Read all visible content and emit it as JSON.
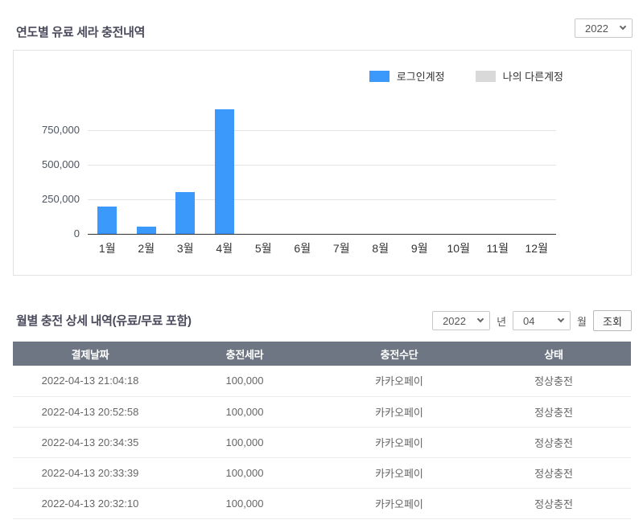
{
  "header": {
    "title": "연도별 유료 세라 충전내역",
    "year_select": {
      "value": "2022"
    }
  },
  "chart_data": {
    "type": "bar",
    "title": "연도별 유료 세라 충전내역",
    "categories": [
      "1월",
      "2월",
      "3월",
      "4월",
      "5월",
      "6월",
      "7월",
      "8월",
      "9월",
      "10월",
      "11월",
      "12월"
    ],
    "series": [
      {
        "name": "로그인계정",
        "color": "#3B99FC",
        "values": [
          200000,
          50000,
          300000,
          900000,
          0,
          0,
          0,
          0,
          0,
          0,
          0,
          0
        ]
      },
      {
        "name": "나의 다른계정",
        "color": "#D9D9D9",
        "values": [
          0,
          0,
          0,
          0,
          0,
          0,
          0,
          0,
          0,
          0,
          0,
          0
        ]
      }
    ],
    "xlabel": "",
    "ylabel": "",
    "yticks": [
      0,
      250000,
      500000,
      750000
    ],
    "ytick_labels": [
      "0",
      "250,000",
      "500,000",
      "750,000"
    ],
    "ylim": [
      0,
      960000
    ],
    "grid": true,
    "legend_position": "top-right"
  },
  "detail": {
    "title": "월별 충전 상세 내역(유료/무료 포함)",
    "controls": {
      "year": {
        "value": "2022"
      },
      "year_label": "년",
      "month": {
        "value": "04"
      },
      "month_label": "월",
      "search_button": "조회"
    }
  },
  "table": {
    "headers": [
      "결제날짜",
      "충전세라",
      "충전수단",
      "상태"
    ],
    "rows": [
      [
        "2022-04-13 21:04:18",
        "100,000",
        "카카오페이",
        "정상충전"
      ],
      [
        "2022-04-13 20:52:58",
        "100,000",
        "카카오페이",
        "정상충전"
      ],
      [
        "2022-04-13 20:34:35",
        "100,000",
        "카카오페이",
        "정상충전"
      ],
      [
        "2022-04-13 20:33:39",
        "100,000",
        "카카오페이",
        "정상충전"
      ],
      [
        "2022-04-13 20:32:10",
        "100,000",
        "카카오페이",
        "정상충전"
      ]
    ]
  },
  "colors": {
    "bar_blue": "#3B99FC",
    "legend_gray": "#D9D9D9",
    "table_header_bg": "#6E7683",
    "title_text": "#4A4A5C"
  }
}
